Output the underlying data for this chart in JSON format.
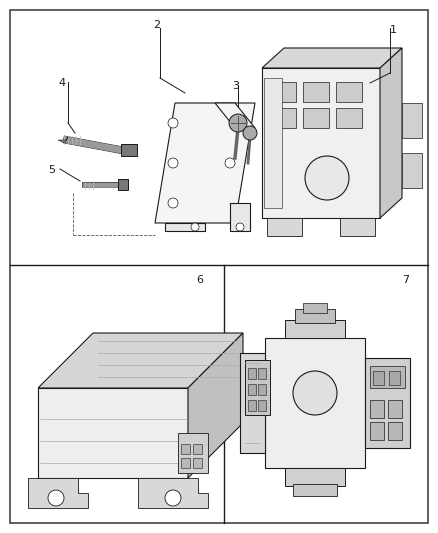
{
  "bg_color": "#ffffff",
  "lc": "#1a1a1a",
  "fig_w": 4.38,
  "fig_h": 5.33,
  "dpi": 100,
  "lw": 0.8,
  "panel_border_lw": 1.0,
  "label_fs": 8
}
